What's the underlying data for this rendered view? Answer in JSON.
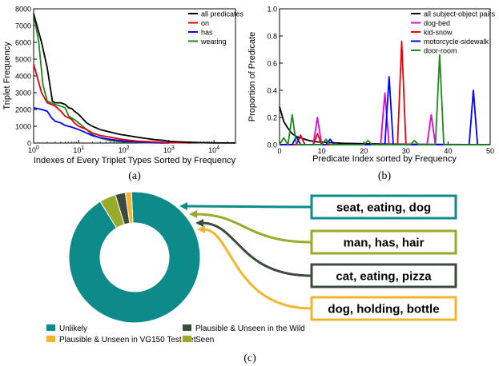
{
  "chart_data": [
    {
      "type": "line",
      "panel_label": "(a)",
      "xlabel": "Indexes of Every Triplet Types Sorted by Frequency",
      "ylabel": "Triplet Frequency",
      "xscale": "log",
      "xlim": [
        1,
        30000
      ],
      "ylim": [
        0,
        8000
      ],
      "xticks": [
        {
          "value": 1,
          "base": "10",
          "exp": "0"
        },
        {
          "value": 10,
          "base": "10",
          "exp": "1"
        },
        {
          "value": 100,
          "base": "10",
          "exp": "2"
        },
        {
          "value": 1000,
          "base": "10",
          "exp": "3"
        },
        {
          "value": 10000,
          "base": "10",
          "exp": "4"
        }
      ],
      "yticks": [
        "0",
        "1000",
        "2000",
        "3000",
        "4000",
        "5000",
        "6000",
        "7000",
        "8000"
      ],
      "legend_position": "top-right",
      "series": [
        {
          "name": "all predicates",
          "color": "#000000",
          "points": [
            [
              1,
              7700
            ],
            [
              1.5,
              6000
            ],
            [
              2,
              4500
            ],
            [
              2.6,
              2500
            ],
            [
              3,
              2400
            ],
            [
              4,
              2400
            ],
            [
              5,
              2300
            ],
            [
              6,
              2100
            ],
            [
              7,
              2050
            ],
            [
              8,
              1900
            ],
            [
              10,
              1700
            ],
            [
              15,
              1200
            ],
            [
              20,
              1000
            ],
            [
              30,
              800
            ],
            [
              50,
              650
            ],
            [
              80,
              520
            ],
            [
              120,
              450
            ],
            [
              200,
              350
            ],
            [
              300,
              280
            ],
            [
              500,
              200
            ],
            [
              800,
              150
            ],
            [
              1000,
              100
            ],
            [
              2000,
              60
            ],
            [
              5000,
              25
            ],
            [
              10000,
              10
            ],
            [
              30000,
              5
            ]
          ]
        },
        {
          "name": "on",
          "color": "#e8000b",
          "points": [
            [
              1,
              4700
            ],
            [
              1.5,
              3000
            ],
            [
              2,
              2400
            ],
            [
              3,
              2200
            ],
            [
              4,
              1900
            ],
            [
              5,
              1600
            ],
            [
              6,
              1500
            ],
            [
              7,
              1400
            ],
            [
              8,
              1200
            ],
            [
              10,
              1000
            ],
            [
              15,
              800
            ],
            [
              20,
              600
            ],
            [
              30,
              450
            ],
            [
              50,
              350
            ],
            [
              100,
              200
            ],
            [
              200,
              120
            ],
            [
              500,
              60
            ],
            [
              1000,
              30
            ],
            [
              3000,
              10
            ]
          ]
        },
        {
          "name": "has",
          "color": "#0000ff",
          "points": [
            [
              1,
              2100
            ],
            [
              1.5,
              2000
            ],
            [
              2,
              1900
            ],
            [
              2.5,
              1500
            ],
            [
              3,
              1300
            ],
            [
              4,
              1200
            ],
            [
              5,
              1050
            ],
            [
              7,
              950
            ],
            [
              10,
              800
            ],
            [
              15,
              600
            ],
            [
              20,
              450
            ],
            [
              30,
              320
            ],
            [
              50,
              220
            ],
            [
              100,
              120
            ],
            [
              200,
              60
            ],
            [
              500,
              20
            ],
            [
              1000,
              10
            ]
          ]
        },
        {
          "name": "wearing",
          "color": "#1a8a1a",
          "points": [
            [
              1,
              7700
            ],
            [
              1.3,
              6000
            ],
            [
              1.6,
              3500
            ],
            [
              2,
              2500
            ],
            [
              3,
              2300
            ],
            [
              4,
              2200
            ],
            [
              5,
              2100
            ],
            [
              6,
              1600
            ],
            [
              8,
              1400
            ],
            [
              10,
              1200
            ],
            [
              15,
              800
            ],
            [
              20,
              500
            ],
            [
              30,
              300
            ],
            [
              50,
              150
            ],
            [
              100,
              60
            ],
            [
              300,
              20
            ],
            [
              800,
              5
            ]
          ]
        }
      ]
    },
    {
      "type": "line",
      "panel_label": "(b)",
      "xlabel": "Predicate Index sorted by Frequency",
      "ylabel": "Proportion of Predicate",
      "xlim": [
        0,
        50
      ],
      "ylim": [
        0,
        1.0
      ],
      "xticks": [
        "0",
        "10",
        "20",
        "30",
        "40",
        "50"
      ],
      "yticks": [
        "0.0",
        "0.2",
        "0.4",
        "0.6",
        "0.8",
        "1.0"
      ],
      "legend_position": "top-right",
      "series": [
        {
          "name": "all subject-object pairs",
          "color": "#000000",
          "points": [
            [
              0,
              0.28
            ],
            [
              1,
              0.17
            ],
            [
              2,
              0.12
            ],
            [
              3,
              0.08
            ],
            [
              4,
              0.06
            ],
            [
              5,
              0.05
            ],
            [
              6,
              0.04
            ],
            [
              7,
              0.03
            ],
            [
              8,
              0.025
            ],
            [
              9,
              0.02
            ],
            [
              10,
              0.018
            ],
            [
              12,
              0.015
            ],
            [
              15,
              0.01
            ],
            [
              20,
              0.007
            ],
            [
              25,
              0.004
            ],
            [
              30,
              0.003
            ],
            [
              35,
              0.002
            ],
            [
              40,
              0.001
            ],
            [
              50,
              0.0
            ]
          ]
        },
        {
          "name": "dog-bed",
          "color": "#e600e6",
          "points": [
            [
              0,
              0
            ],
            [
              8,
              0
            ],
            [
              9,
              0.2
            ],
            [
              10,
              0
            ],
            [
              24,
              0
            ],
            [
              25,
              0.38
            ],
            [
              26,
              0
            ],
            [
              35,
              0
            ],
            [
              36,
              0.22
            ],
            [
              37,
              0
            ],
            [
              50,
              0
            ]
          ]
        },
        {
          "name": "kid-snow",
          "color": "#e8000b",
          "points": [
            [
              0,
              0
            ],
            [
              4,
              0
            ],
            [
              5,
              0.07
            ],
            [
              6,
              0
            ],
            [
              8,
              0
            ],
            [
              9,
              0.08
            ],
            [
              10,
              0
            ],
            [
              28,
              0
            ],
            [
              29,
              0.76
            ],
            [
              30,
              0
            ],
            [
              50,
              0
            ]
          ]
        },
        {
          "name": "motorcycle-sidewalk",
          "color": "#0000ff",
          "points": [
            [
              0,
              0
            ],
            [
              3,
              0
            ],
            [
              4,
              0.06
            ],
            [
              5,
              0
            ],
            [
              11,
              0
            ],
            [
              12,
              0.04
            ],
            [
              13,
              0
            ],
            [
              25,
              0
            ],
            [
              26,
              0.5
            ],
            [
              27,
              0
            ],
            [
              45,
              0
            ],
            [
              46,
              0.4
            ],
            [
              47,
              0
            ],
            [
              50,
              0
            ]
          ]
        },
        {
          "name": "door-room",
          "color": "#1a8a1a",
          "points": [
            [
              0,
              0
            ],
            [
              1,
              0.05
            ],
            [
              2,
              0
            ],
            [
              3,
              0.22
            ],
            [
              4,
              0
            ],
            [
              10,
              0
            ],
            [
              11,
              0.04
            ],
            [
              12,
              0
            ],
            [
              20,
              0
            ],
            [
              21,
              0.03
            ],
            [
              22,
              0
            ],
            [
              31,
              0
            ],
            [
              32,
              0.03
            ],
            [
              33,
              0
            ],
            [
              37,
              0
            ],
            [
              38,
              0.66
            ],
            [
              39,
              0
            ],
            [
              50,
              0
            ]
          ]
        }
      ]
    },
    {
      "type": "pie",
      "panel_label": "(c)",
      "donut": true,
      "slices": [
        {
          "name": "Unlikely",
          "value": 92.0,
          "color": "#0d8b8b"
        },
        {
          "name": "Seen",
          "value": 4.0,
          "color": "#9aaa2a"
        },
        {
          "name": "Plausible & Unseen in the Wild",
          "value": 2.5,
          "color": "#3d4a3e"
        },
        {
          "name": "Plausible & Unseen in VG150 Test Set",
          "value": 1.5,
          "color": "#f3b52d"
        }
      ],
      "callouts": [
        {
          "text": "seat, eating, dog",
          "color": "#0d8b8b"
        },
        {
          "text": "man, has, hair",
          "color": "#9aaa2a"
        },
        {
          "text": "cat, eating, pizza",
          "color": "#3d4a3e"
        },
        {
          "text": "dog, holding, bottle",
          "color": "#f3b52d"
        }
      ],
      "legend": [
        {
          "label": "Unlikely",
          "color": "#0d8b8b"
        },
        {
          "label": "Plausible & Unseen in the Wild",
          "color": "#3d4a3e"
        },
        {
          "label": "Plausible & Unseen in VG150 Test Set",
          "color": "#f3b52d"
        },
        {
          "label": "Seen",
          "color": "#9aaa2a"
        }
      ]
    }
  ]
}
